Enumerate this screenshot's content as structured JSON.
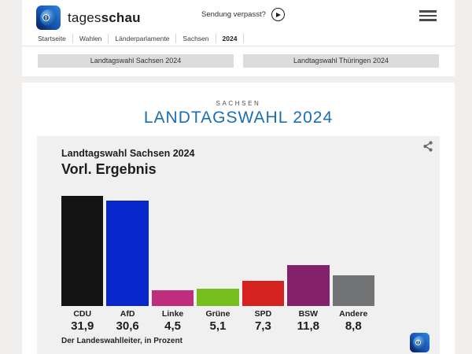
{
  "header": {
    "brand": {
      "regular": "tages",
      "bold": "schau"
    },
    "watch_link": "Sendung verpasst?",
    "breadcrumb": [
      "Startseite",
      "Wahlen",
      "Länderparlamente",
      "Sachsen",
      "2024"
    ],
    "quick_links": [
      "Landtagswahl Sachsen 2024",
      "Landtagswahl Thüringen 2024"
    ]
  },
  "page": {
    "kicker": "SACHSEN",
    "title": "LANDTAGSWAHL 2024",
    "title_color": "#1a6eb4"
  },
  "chart_card": {
    "title": "Landtagswahl Sachsen 2024",
    "subtitle": "Vorl. Ergebnis",
    "source": "Der Landeswahlleiter, in Prozent"
  },
  "chart_data": {
    "type": "bar",
    "title": "Landtagswahl Sachsen 2024 – Vorl. Ergebnis",
    "categories": [
      "CDU",
      "AfD",
      "Linke",
      "Grüne",
      "SPD",
      "BSW",
      "Andere"
    ],
    "values": [
      31.9,
      30.6,
      4.5,
      5.1,
      7.3,
      11.8,
      8.8
    ],
    "value_labels": [
      "31,9",
      "30,6",
      "4,5",
      "5,1",
      "7,3",
      "11,8",
      "8,8"
    ],
    "bar_colors": [
      "#141414",
      "#0726cc",
      "#c02d7c",
      "#76bd1d",
      "#d62121",
      "#85216b",
      "#717375"
    ],
    "unit": "Prozent",
    "ylim": [
      0,
      32
    ],
    "grid": false,
    "legend_position": "none",
    "source": "Der Landeswahlleiter, in Prozent"
  },
  "icons": {
    "menu": "hamburger-icon (three bars)",
    "play": "play-icon (circle + triangle)",
    "share": "share-icon (three connected dots)",
    "logo": "tagesschau-globe-icon"
  },
  "colors": {
    "page_background": "#f0efed",
    "card_background": "#ffffff",
    "chart_background": "#f0f0f0",
    "accent_blue": "#1a6eb4",
    "text": "#1d1d1d"
  }
}
